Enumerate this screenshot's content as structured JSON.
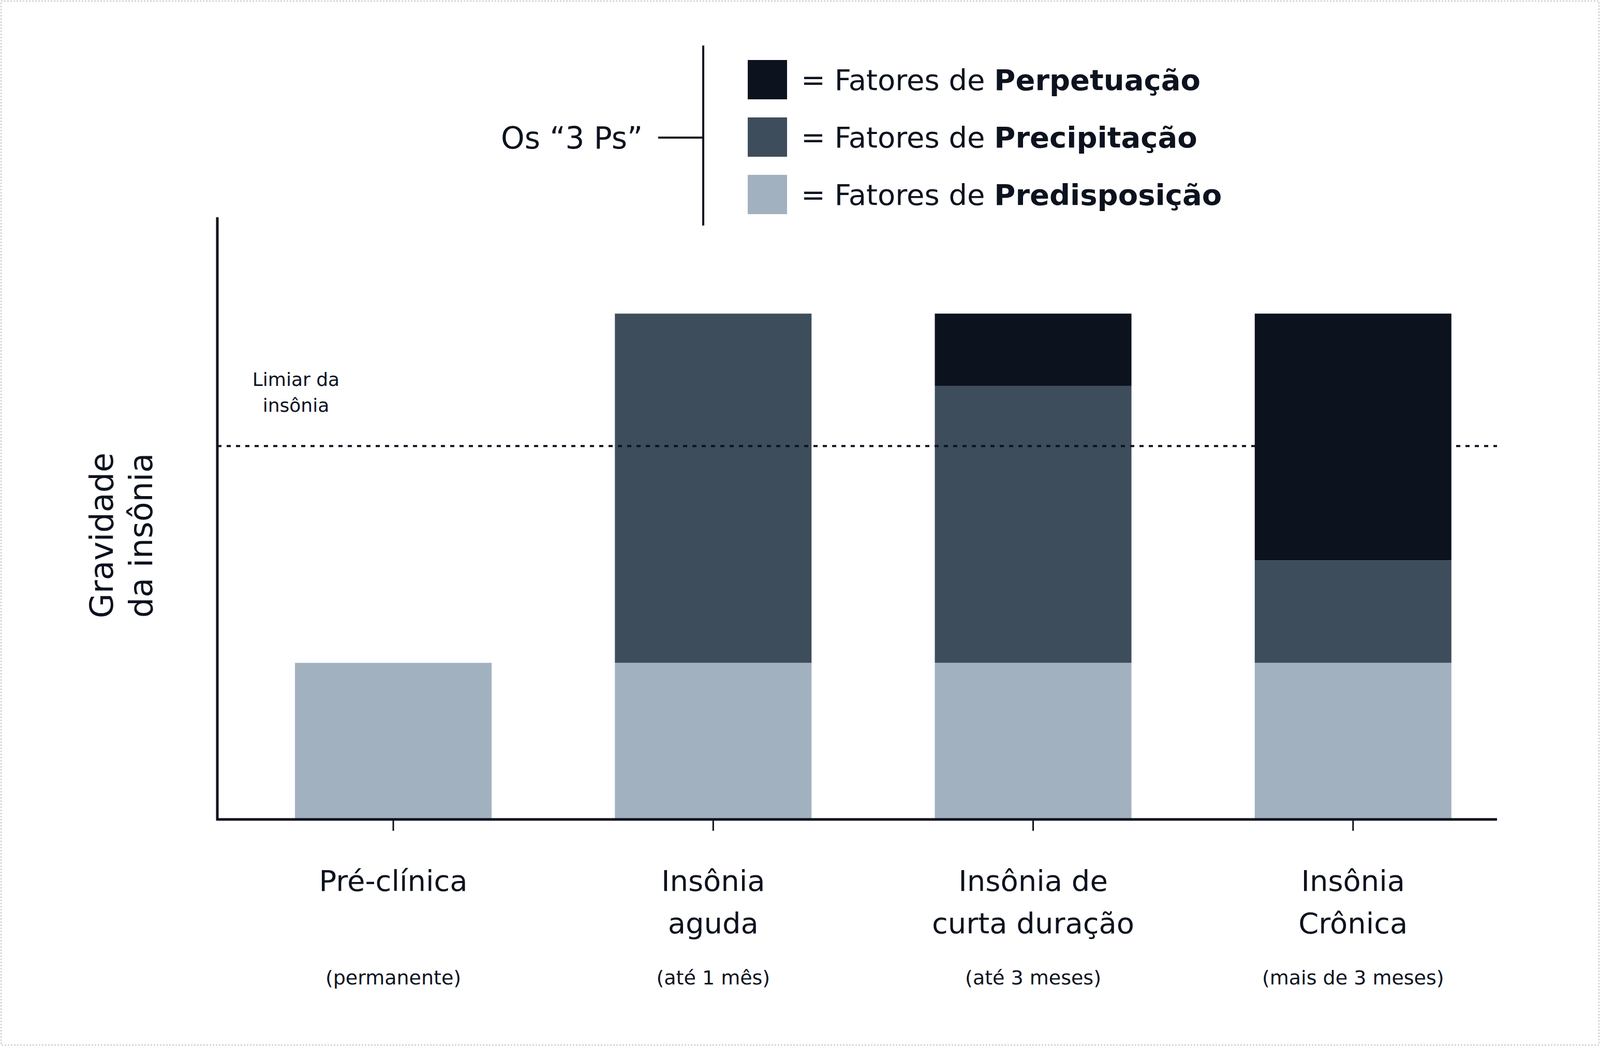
{
  "chart_data": {
    "type": "bar",
    "stacked": true,
    "y_label": "Gravidade\nda insônia",
    "legend_title": "Os “3 Ps”",
    "legend_prefix": "= Fatores de",
    "legend": "top",
    "tick_labels": "x",
    "grid": false,
    "categories": [
      "Pré-clínica",
      "Insônia\naguda",
      "Insônia de\ncurta duração",
      "Insônia\nCrônica"
    ],
    "category_notes": [
      "(permanente)",
      "(até 1 mês)",
      "(até 3 meses)",
      "(mais de 3 meses)"
    ],
    "ylim": [
      0,
      100
    ],
    "yticks": [],
    "threshold": {
      "value": 62,
      "label": "Limiar da\ninsônia",
      "line_style": "dotted"
    },
    "series": [
      {
        "name": "Predisposição",
        "color": "#a2b1c0",
        "values": [
          26,
          26,
          26,
          26
        ]
      },
      {
        "name": "Precipitação",
        "color": "#3d4d5b",
        "values": [
          null,
          58,
          46,
          17
        ]
      },
      {
        "name": "Perpetuação",
        "color": "#0c121e",
        "values": [
          null,
          null,
          12,
          41
        ]
      }
    ]
  }
}
